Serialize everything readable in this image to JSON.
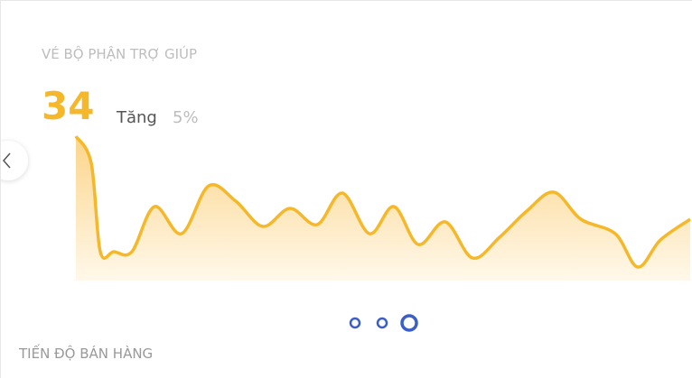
{
  "card": {
    "title": "VÉ BỘ PHẬN TRỢ GIÚP",
    "value": 34,
    "change_label": "Tăng",
    "change": "5%"
  },
  "chart_data": {
    "type": "area",
    "color": "#f5b82a",
    "x": [
      0,
      17,
      27,
      42,
      62,
      87,
      117,
      147,
      177,
      207,
      237,
      267,
      295,
      325,
      352,
      379,
      409,
      439,
      469,
      499,
      529,
      559,
      597,
      622,
      647,
      680
    ],
    "values": [
      160,
      130,
      32,
      32,
      32,
      82,
      52,
      105,
      88,
      60,
      80,
      62,
      97,
      52,
      82,
      40,
      65,
      25,
      48,
      77,
      98,
      68,
      52,
      15,
      45,
      68
    ],
    "xlim": [
      0,
      680
    ],
    "ylim": [
      0,
      160
    ]
  },
  "next_section": {
    "title": "TIẾN ĐỘ BÁN HÀNG"
  }
}
